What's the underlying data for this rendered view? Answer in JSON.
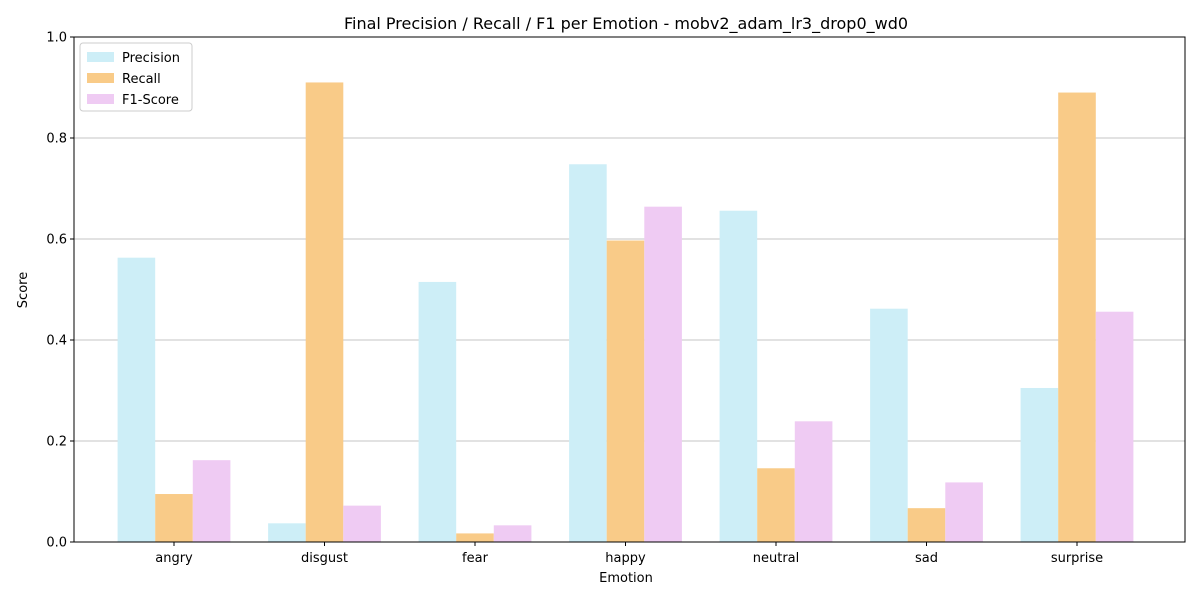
{
  "chart_data": {
    "type": "bar",
    "title": "Final Precision / Recall / F1 per Emotion - mobv2_adam_lr3_drop0_wd0",
    "xlabel": "Emotion",
    "ylabel": "Score",
    "ylim": [
      0,
      1.0
    ],
    "yticks": [
      "0.0",
      "0.2",
      "0.4",
      "0.6",
      "0.8",
      "1.0"
    ],
    "grid": "y",
    "legend": "top-left",
    "categories": [
      "angry",
      "disgust",
      "fear",
      "happy",
      "neutral",
      "sad",
      "surprise"
    ],
    "series": [
      {
        "name": "Precision",
        "color": "#cdeef7",
        "values": [
          0.563,
          0.037,
          0.515,
          0.748,
          0.656,
          0.462,
          0.305
        ]
      },
      {
        "name": "Recall",
        "color": "#f9cb88",
        "values": [
          0.095,
          0.91,
          0.017,
          0.597,
          0.146,
          0.067,
          0.89
        ]
      },
      {
        "name": "F1-Score",
        "color": "#efcbf3",
        "values": [
          0.162,
          0.072,
          0.033,
          0.664,
          0.239,
          0.118,
          0.456
        ]
      }
    ]
  }
}
